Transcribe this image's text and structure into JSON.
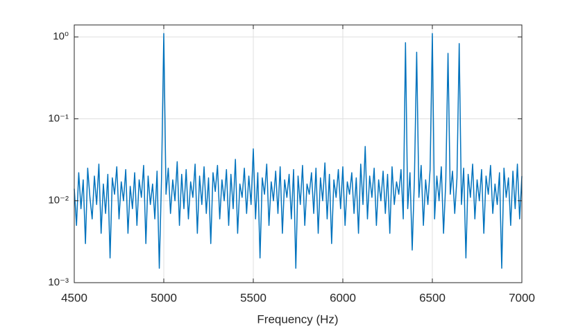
{
  "chart_data": {
    "type": "line",
    "xlabel": "Frequency (Hz)",
    "x": [
      4500,
      4512.5,
      4525,
      4537.5,
      4550,
      4562.5,
      4575,
      4587.5,
      4600,
      4612.5,
      4625,
      4637.5,
      4650,
      4662.5,
      4675,
      4687.5,
      4700,
      4712.5,
      4725,
      4737.5,
      4750,
      4762.5,
      4775,
      4787.5,
      4800,
      4812.5,
      4825,
      4837.5,
      4850,
      4862.5,
      4875,
      4887.5,
      4900,
      4912.5,
      4925,
      4937.5,
      4950,
      4962.5,
      4975,
      4987.5,
      5000,
      5012.5,
      5025,
      5037.5,
      5050,
      5062.5,
      5075,
      5087.5,
      5100,
      5112.5,
      5125,
      5137.5,
      5150,
      5162.5,
      5175,
      5187.5,
      5200,
      5212.5,
      5225,
      5237.5,
      5250,
      5262.5,
      5275,
      5287.5,
      5300,
      5312.5,
      5325,
      5337.5,
      5350,
      5362.5,
      5375,
      5387.5,
      5400,
      5412.5,
      5425,
      5437.5,
      5450,
      5462.5,
      5475,
      5487.5,
      5500,
      5512.5,
      5525,
      5537.5,
      5550,
      5562.5,
      5575,
      5587.5,
      5600,
      5612.5,
      5625,
      5637.5,
      5650,
      5662.5,
      5675,
      5687.5,
      5700,
      5712.5,
      5725,
      5737.5,
      5750,
      5762.5,
      5775,
      5787.5,
      5800,
      5812.5,
      5825,
      5837.5,
      5850,
      5862.5,
      5875,
      5887.5,
      5900,
      5912.5,
      5925,
      5937.5,
      5950,
      5962.5,
      5975,
      5987.5,
      6000,
      6012.5,
      6025,
      6037.5,
      6050,
      6062.5,
      6075,
      6087.5,
      6100,
      6112.5,
      6125,
      6137.5,
      6150,
      6162.5,
      6175,
      6187.5,
      6200,
      6212.5,
      6225,
      6237.5,
      6250,
      6262.5,
      6275,
      6287.5,
      6300,
      6312.5,
      6325,
      6337.5,
      6350,
      6362.5,
      6375,
      6387.5,
      6400,
      6412.5,
      6425,
      6437.5,
      6450,
      6462.5,
      6475,
      6487.5,
      6500,
      6512.5,
      6525,
      6537.5,
      6550,
      6562.5,
      6575,
      6587.5,
      6600,
      6612.5,
      6625,
      6637.5,
      6650,
      6662.5,
      6675,
      6687.5,
      6700,
      6712.5,
      6725,
      6737.5,
      6750,
      6762.5,
      6775,
      6787.5,
      6800,
      6812.5,
      6825,
      6837.5,
      6850,
      6862.5,
      6875,
      6887.5,
      6900,
      6912.5,
      6925,
      6937.5,
      6950,
      6962.5,
      6975,
      6987.5,
      7000
    ],
    "values": [
      0.014,
      0.005,
      0.022,
      0.008,
      0.018,
      0.003,
      0.025,
      0.011,
      0.006,
      0.02,
      0.009,
      0.028,
      0.004,
      0.016,
      0.007,
      0.021,
      0.002,
      0.019,
      0.012,
      0.026,
      0.006,
      0.017,
      0.01,
      0.024,
      0.004,
      0.015,
      0.008,
      0.022,
      0.005,
      0.018,
      0.011,
      0.027,
      0.003,
      0.02,
      0.009,
      0.016,
      0.006,
      0.023,
      0.0015,
      0.019,
      1.1,
      0.012,
      0.025,
      0.007,
      0.018,
      0.01,
      0.03,
      0.005,
      0.021,
      0.008,
      0.024,
      0.006,
      0.017,
      0.011,
      0.028,
      0.004,
      0.02,
      0.009,
      0.026,
      0.007,
      0.019,
      0.003,
      0.022,
      0.013,
      0.027,
      0.006,
      0.018,
      0.01,
      0.024,
      0.005,
      0.021,
      0.008,
      0.032,
      0.004,
      0.016,
      0.011,
      0.025,
      0.007,
      0.02,
      0.009,
      0.043,
      0.006,
      0.022,
      0.002,
      0.019,
      0.012,
      0.028,
      0.005,
      0.017,
      0.01,
      0.023,
      0.007,
      0.026,
      0.004,
      0.018,
      0.011,
      0.021,
      0.006,
      0.024,
      0.0015,
      0.02,
      0.009,
      0.027,
      0.005,
      0.016,
      0.012,
      0.022,
      0.007,
      0.025,
      0.004,
      0.019,
      0.01,
      0.029,
      0.006,
      0.021,
      0.003,
      0.018,
      0.011,
      0.024,
      0.008,
      0.026,
      0.005,
      0.017,
      0.012,
      0.022,
      0.007,
      0.019,
      0.004,
      0.028,
      0.009,
      0.046,
      0.006,
      0.02,
      0.011,
      0.025,
      0.005,
      0.018,
      0.01,
      0.023,
      0.007,
      0.021,
      0.004,
      0.026,
      0.009,
      0.017,
      0.012,
      0.024,
      0.006,
      0.85,
      0.008,
      0.022,
      0.0025,
      0.019,
      0.65,
      0.011,
      0.027,
      0.005,
      0.018,
      0.009,
      0.024,
      1.1,
      0.006,
      0.02,
      0.01,
      0.026,
      0.004,
      0.017,
      0.63,
      0.012,
      0.023,
      0.007,
      0.019,
      0.83,
      0.009,
      0.025,
      0.002,
      0.021,
      0.011,
      0.028,
      0.006,
      0.018,
      0.01,
      0.024,
      0.004,
      0.02,
      0.012,
      0.027,
      0.007,
      0.016,
      0.009,
      0.022,
      0.0015,
      0.025,
      0.011,
      0.019,
      0.005,
      0.023,
      0.008,
      0.028,
      0.006,
      0.02
    ],
    "color": "#0072bd",
    "xlim": [
      4500,
      7000
    ],
    "xticks": [
      4500,
      5000,
      5500,
      6000,
      6500,
      7000
    ],
    "ylim": [
      0.001,
      1.4
    ],
    "log_y": true,
    "yticks": [
      {
        "value": 0.001,
        "label": "10⁻³"
      },
      {
        "value": 0.01,
        "label": "10⁻²"
      },
      {
        "value": 0.1,
        "label": "10⁻¹"
      },
      {
        "value": 1,
        "label": "10⁰"
      }
    ],
    "grid": true
  }
}
